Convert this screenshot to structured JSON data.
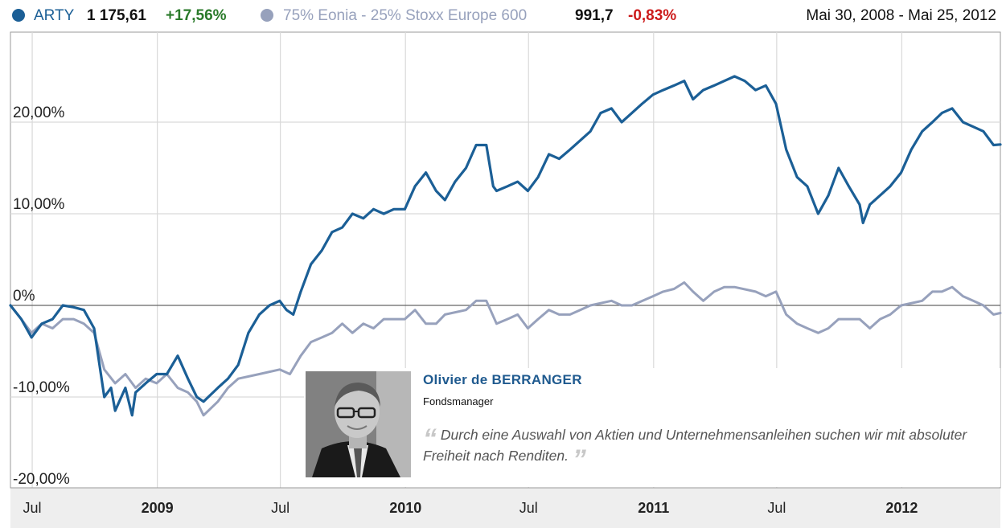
{
  "legend": {
    "series1_name": "ARTY",
    "series1_value": "1 175,61",
    "series1_change": "+17,56%",
    "series2_name": "75% Eonia - 25% Stoxx Europe 600",
    "series2_value": "991,7",
    "series2_change": "-0,83%",
    "date_range": "Mai 30, 2008 - Mai 25, 2012",
    "colors": {
      "series1": "#1b5f96",
      "series2": "#97a1bc",
      "positive": "#2a7a2a",
      "negative": "#cc1a1a"
    }
  },
  "profile": {
    "name": "Olivier de BERRANGER",
    "role": "Fondsmanager",
    "quote": "Durch eine Auswahl von Aktien und Unternehmensanleihen suchen wir mit absoluter Freiheit nach Renditen.",
    "quote_open": "“",
    "quote_close": "”"
  },
  "chart_data": {
    "type": "line",
    "title": "",
    "xlabel": "",
    "ylabel": "",
    "x_range": [
      "2008-05-30",
      "2012-05-25"
    ],
    "ylim": [
      -22,
      29
    ],
    "grid": true,
    "legend_position": "top",
    "y_ticks": [
      {
        "value": 20,
        "label": "20,00%"
      },
      {
        "value": 10,
        "label": "10,00%"
      },
      {
        "value": 0,
        "label": "0%"
      },
      {
        "value": -10,
        "label": "-10,00%"
      },
      {
        "value": -20,
        "label": "-20,00%"
      }
    ],
    "x_ticks": [
      {
        "date": "2008-07-01",
        "label": "Jul",
        "bold": false
      },
      {
        "date": "2009-01-01",
        "label": "2009",
        "bold": true
      },
      {
        "date": "2009-07-01",
        "label": "Jul",
        "bold": false
      },
      {
        "date": "2010-01-01",
        "label": "2010",
        "bold": true
      },
      {
        "date": "2010-07-01",
        "label": "Jul",
        "bold": false
      },
      {
        "date": "2011-01-01",
        "label": "2011",
        "bold": true
      },
      {
        "date": "2011-07-01",
        "label": "Jul",
        "bold": false
      },
      {
        "date": "2012-01-01",
        "label": "2012",
        "bold": true
      }
    ],
    "series": [
      {
        "name": "ARTY",
        "color": "#1b5f96",
        "points": [
          [
            "2008-05-30",
            0
          ],
          [
            "2008-06-15",
            -1.5
          ],
          [
            "2008-06-30",
            -3.5
          ],
          [
            "2008-07-15",
            -2
          ],
          [
            "2008-07-31",
            -1.5
          ],
          [
            "2008-08-15",
            0
          ],
          [
            "2008-08-31",
            -0.2
          ],
          [
            "2008-09-15",
            -0.5
          ],
          [
            "2008-09-30",
            -2.5
          ],
          [
            "2008-10-15",
            -10
          ],
          [
            "2008-10-25",
            -9
          ],
          [
            "2008-10-31",
            -11.5
          ],
          [
            "2008-11-15",
            -9
          ],
          [
            "2008-11-25",
            -12
          ],
          [
            "2008-11-30",
            -9.5
          ],
          [
            "2008-12-15",
            -8.5
          ],
          [
            "2008-12-31",
            -7.5
          ],
          [
            "2009-01-15",
            -7.5
          ],
          [
            "2009-01-31",
            -5.5
          ],
          [
            "2009-02-15",
            -8
          ],
          [
            "2009-02-28",
            -10
          ],
          [
            "2009-03-10",
            -10.5
          ],
          [
            "2009-03-31",
            -9
          ],
          [
            "2009-04-15",
            -8
          ],
          [
            "2009-04-30",
            -6.5
          ],
          [
            "2009-05-15",
            -3
          ],
          [
            "2009-05-31",
            -1
          ],
          [
            "2009-06-15",
            0
          ],
          [
            "2009-06-30",
            0.5
          ],
          [
            "2009-07-10",
            -0.5
          ],
          [
            "2009-07-20",
            -1
          ],
          [
            "2009-07-31",
            1.5
          ],
          [
            "2009-08-15",
            4.5
          ],
          [
            "2009-08-31",
            6
          ],
          [
            "2009-09-15",
            8
          ],
          [
            "2009-09-30",
            8.5
          ],
          [
            "2009-10-15",
            10
          ],
          [
            "2009-10-31",
            9.5
          ],
          [
            "2009-11-15",
            10.5
          ],
          [
            "2009-11-30",
            10
          ],
          [
            "2009-12-15",
            10.5
          ],
          [
            "2009-12-31",
            10.5
          ],
          [
            "2010-01-15",
            13
          ],
          [
            "2010-01-31",
            14.5
          ],
          [
            "2010-02-15",
            12.5
          ],
          [
            "2010-02-28",
            11.5
          ],
          [
            "2010-03-15",
            13.5
          ],
          [
            "2010-03-31",
            15
          ],
          [
            "2010-04-15",
            17.5
          ],
          [
            "2010-04-30",
            17.5
          ],
          [
            "2010-05-10",
            13
          ],
          [
            "2010-05-15",
            12.5
          ],
          [
            "2010-05-31",
            13
          ],
          [
            "2010-06-15",
            13.5
          ],
          [
            "2010-06-30",
            12.5
          ],
          [
            "2010-07-15",
            14
          ],
          [
            "2010-07-31",
            16.5
          ],
          [
            "2010-08-15",
            16
          ],
          [
            "2010-08-31",
            17
          ],
          [
            "2010-09-15",
            18
          ],
          [
            "2010-09-30",
            19
          ],
          [
            "2010-10-15",
            21
          ],
          [
            "2010-10-31",
            21.5
          ],
          [
            "2010-11-15",
            20
          ],
          [
            "2010-11-30",
            21
          ],
          [
            "2010-12-15",
            22
          ],
          [
            "2010-12-31",
            23
          ],
          [
            "2011-01-15",
            23.5
          ],
          [
            "2011-01-31",
            24
          ],
          [
            "2011-02-15",
            24.5
          ],
          [
            "2011-02-28",
            22.5
          ],
          [
            "2011-03-15",
            23.5
          ],
          [
            "2011-03-31",
            24
          ],
          [
            "2011-04-15",
            24.5
          ],
          [
            "2011-04-30",
            25
          ],
          [
            "2011-05-15",
            24.5
          ],
          [
            "2011-05-31",
            23.5
          ],
          [
            "2011-06-15",
            24
          ],
          [
            "2011-06-30",
            22
          ],
          [
            "2011-07-15",
            17
          ],
          [
            "2011-07-31",
            14
          ],
          [
            "2011-08-15",
            13
          ],
          [
            "2011-08-31",
            10
          ],
          [
            "2011-09-15",
            12
          ],
          [
            "2011-09-30",
            15
          ],
          [
            "2011-10-15",
            13
          ],
          [
            "2011-10-31",
            11
          ],
          [
            "2011-11-05",
            9
          ],
          [
            "2011-11-15",
            11
          ],
          [
            "2011-11-30",
            12
          ],
          [
            "2011-12-15",
            13
          ],
          [
            "2011-12-31",
            14.5
          ],
          [
            "2012-01-15",
            17
          ],
          [
            "2012-01-31",
            19
          ],
          [
            "2012-02-15",
            20
          ],
          [
            "2012-02-29",
            21
          ],
          [
            "2012-03-15",
            21.5
          ],
          [
            "2012-03-31",
            20
          ],
          [
            "2012-04-15",
            19.5
          ],
          [
            "2012-04-30",
            19
          ],
          [
            "2012-05-15",
            17.5
          ],
          [
            "2012-05-25",
            17.56
          ]
        ]
      },
      {
        "name": "75% Eonia - 25% Stoxx Europe 600",
        "color": "#97a1bc",
        "points": [
          [
            "2008-05-30",
            0
          ],
          [
            "2008-06-15",
            -1.5
          ],
          [
            "2008-06-30",
            -3
          ],
          [
            "2008-07-15",
            -2
          ],
          [
            "2008-07-31",
            -2.5
          ],
          [
            "2008-08-15",
            -1.5
          ],
          [
            "2008-08-31",
            -1.5
          ],
          [
            "2008-09-15",
            -2
          ],
          [
            "2008-09-30",
            -3
          ],
          [
            "2008-10-15",
            -7
          ],
          [
            "2008-10-31",
            -8.5
          ],
          [
            "2008-11-15",
            -7.5
          ],
          [
            "2008-11-30",
            -9
          ],
          [
            "2008-12-15",
            -8
          ],
          [
            "2008-12-31",
            -8.5
          ],
          [
            "2009-01-15",
            -7.5
          ],
          [
            "2009-01-31",
            -9
          ],
          [
            "2009-02-15",
            -9.5
          ],
          [
            "2009-02-28",
            -10.5
          ],
          [
            "2009-03-10",
            -12
          ],
          [
            "2009-03-31",
            -10.5
          ],
          [
            "2009-04-15",
            -9
          ],
          [
            "2009-04-30",
            -8
          ],
          [
            "2009-05-31",
            -7.5
          ],
          [
            "2009-06-30",
            -7
          ],
          [
            "2009-07-15",
            -7.5
          ],
          [
            "2009-07-31",
            -5.5
          ],
          [
            "2009-08-15",
            -4
          ],
          [
            "2009-08-31",
            -3.5
          ],
          [
            "2009-09-15",
            -3
          ],
          [
            "2009-09-30",
            -2
          ],
          [
            "2009-10-15",
            -3
          ],
          [
            "2009-10-31",
            -2
          ],
          [
            "2009-11-15",
            -2.5
          ],
          [
            "2009-11-30",
            -1.5
          ],
          [
            "2009-12-31",
            -1.5
          ],
          [
            "2010-01-15",
            -0.5
          ],
          [
            "2010-01-31",
            -2
          ],
          [
            "2010-02-15",
            -2
          ],
          [
            "2010-02-28",
            -1
          ],
          [
            "2010-03-31",
            -0.5
          ],
          [
            "2010-04-15",
            0.5
          ],
          [
            "2010-04-30",
            0.5
          ],
          [
            "2010-05-15",
            -2
          ],
          [
            "2010-05-31",
            -1.5
          ],
          [
            "2010-06-15",
            -1
          ],
          [
            "2010-06-30",
            -2.5
          ],
          [
            "2010-07-15",
            -1.5
          ],
          [
            "2010-07-31",
            -0.5
          ],
          [
            "2010-08-15",
            -1
          ],
          [
            "2010-08-31",
            -1
          ],
          [
            "2010-09-15",
            -0.5
          ],
          [
            "2010-09-30",
            0
          ],
          [
            "2010-10-31",
            0.5
          ],
          [
            "2010-11-15",
            0
          ],
          [
            "2010-11-30",
            0
          ],
          [
            "2010-12-31",
            1
          ],
          [
            "2011-01-15",
            1.5
          ],
          [
            "2011-01-31",
            1.8
          ],
          [
            "2011-02-15",
            2.5
          ],
          [
            "2011-02-28",
            1.5
          ],
          [
            "2011-03-15",
            0.5
          ],
          [
            "2011-03-31",
            1.5
          ],
          [
            "2011-04-15",
            2
          ],
          [
            "2011-04-30",
            2
          ],
          [
            "2011-05-31",
            1.5
          ],
          [
            "2011-06-15",
            1
          ],
          [
            "2011-06-30",
            1.5
          ],
          [
            "2011-07-15",
            -1
          ],
          [
            "2011-07-31",
            -2
          ],
          [
            "2011-08-15",
            -2.5
          ],
          [
            "2011-08-31",
            -3
          ],
          [
            "2011-09-15",
            -2.5
          ],
          [
            "2011-09-30",
            -1.5
          ],
          [
            "2011-10-15",
            -1.5
          ],
          [
            "2011-10-31",
            -1.5
          ],
          [
            "2011-11-15",
            -2.5
          ],
          [
            "2011-11-30",
            -1.5
          ],
          [
            "2011-12-15",
            -1
          ],
          [
            "2011-12-31",
            0
          ],
          [
            "2012-01-31",
            0.5
          ],
          [
            "2012-02-15",
            1.5
          ],
          [
            "2012-02-29",
            1.5
          ],
          [
            "2012-03-15",
            2
          ],
          [
            "2012-03-31",
            1
          ],
          [
            "2012-04-15",
            0.5
          ],
          [
            "2012-04-30",
            0
          ],
          [
            "2012-05-15",
            -1
          ],
          [
            "2012-05-25",
            -0.83
          ]
        ]
      }
    ]
  }
}
